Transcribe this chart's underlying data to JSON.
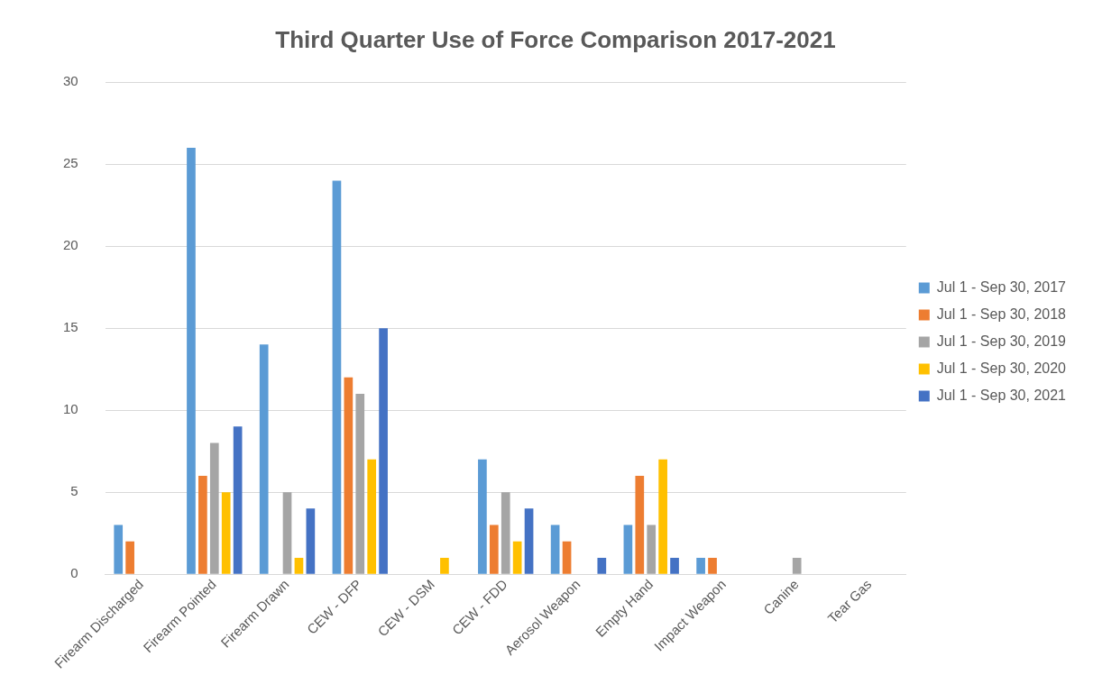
{
  "chart_data": {
    "type": "bar",
    "title": "Third Quarter Use of Force Comparison 2017-2021",
    "categories": [
      "Firearm Discharged",
      "Firearm Pointed",
      "Firearm Drawn",
      "CEW - DFP",
      "CEW - DSM",
      "CEW - FDD",
      "Aerosol Weapon",
      "Empty Hand",
      "Impact Weapon",
      "Canine",
      "Tear Gas"
    ],
    "series": [
      {
        "name": "Jul 1 - Sep 30, 2017",
        "color": "#5b9bd5",
        "values": [
          3,
          26,
          14,
          24,
          0,
          7,
          3,
          3,
          1,
          0,
          0
        ]
      },
      {
        "name": "Jul 1 - Sep 30, 2018",
        "color": "#ed7d31",
        "values": [
          2,
          6,
          0,
          12,
          0,
          3,
          2,
          6,
          1,
          0,
          0
        ]
      },
      {
        "name": "Jul 1 - Sep 30, 2019",
        "color": "#a5a5a5",
        "values": [
          0,
          8,
          5,
          11,
          0,
          5,
          0,
          3,
          0,
          1,
          0
        ]
      },
      {
        "name": "Jul 1 - Sep 30, 2020",
        "color": "#ffc000",
        "values": [
          0,
          5,
          1,
          7,
          1,
          2,
          0,
          7,
          0,
          0,
          0
        ]
      },
      {
        "name": "Jul 1 - Sep 30, 2021",
        "color": "#4472c4",
        "values": [
          0,
          9,
          4,
          15,
          0,
          4,
          1,
          1,
          0,
          0,
          0
        ]
      }
    ],
    "ylim": [
      0,
      30
    ],
    "yticks": [
      0,
      5,
      10,
      15,
      20,
      25,
      30
    ],
    "grid": "y",
    "legend": "right"
  }
}
